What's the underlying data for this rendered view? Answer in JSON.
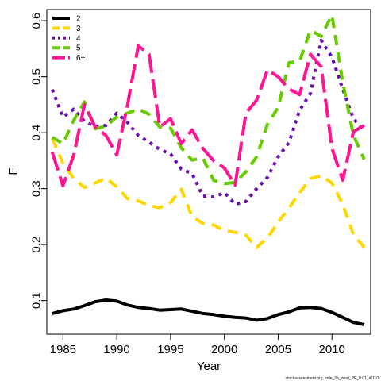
{
  "chart_data": {
    "type": "line",
    "xlabel": "Year",
    "ylabel": "F",
    "xlim": [
      1983.5,
      2013.6
    ],
    "ylim": [
      0.04,
      0.62
    ],
    "x_ticks": [
      1985,
      1990,
      1995,
      2000,
      2005,
      2010
    ],
    "y_ticks": [
      0.1,
      0.2,
      0.3,
      0.4,
      0.5,
      0.6
    ],
    "grid": false,
    "legend_position": "top-left",
    "footnote": "stockassessment.org, sole_3a_west_PE_0.01, r6110",
    "x": [
      1984,
      1985,
      1986,
      1987,
      1988,
      1989,
      1990,
      1991,
      1992,
      1993,
      1994,
      1995,
      1996,
      1997,
      1998,
      1999,
      2000,
      2001,
      2002,
      2003,
      2004,
      2005,
      2006,
      2007,
      2008,
      2009,
      2010,
      2011,
      2012,
      2013
    ],
    "series": [
      {
        "name": "2",
        "color": "#000000",
        "dash": "solid",
        "values": [
          0.077,
          0.082,
          0.085,
          0.091,
          0.098,
          0.101,
          0.099,
          0.092,
          0.088,
          0.086,
          0.083,
          0.084,
          0.085,
          0.081,
          0.077,
          0.075,
          0.072,
          0.07,
          0.069,
          0.065,
          0.068,
          0.075,
          0.08,
          0.087,
          0.088,
          0.086,
          0.079,
          0.07,
          0.061,
          0.057
        ]
      },
      {
        "name": "3",
        "color": "#ffd700",
        "dash": "dashed",
        "values": [
          0.39,
          0.345,
          0.318,
          0.302,
          0.31,
          0.319,
          0.303,
          0.282,
          0.278,
          0.27,
          0.266,
          0.275,
          0.299,
          0.25,
          0.238,
          0.235,
          0.225,
          0.222,
          0.217,
          0.195,
          0.212,
          0.24,
          0.265,
          0.293,
          0.318,
          0.323,
          0.31,
          0.272,
          0.218,
          0.195
        ]
      },
      {
        "name": "4",
        "color": "#6a0dad",
        "dash": "dotted",
        "values": [
          0.477,
          0.428,
          0.442,
          0.42,
          0.411,
          0.413,
          0.435,
          0.418,
          0.395,
          0.383,
          0.37,
          0.362,
          0.335,
          0.327,
          0.287,
          0.285,
          0.293,
          0.272,
          0.277,
          0.3,
          0.32,
          0.357,
          0.382,
          0.44,
          0.47,
          0.565,
          0.535,
          0.478,
          0.425,
          0.403
        ]
      },
      {
        "name": "5",
        "color": "#66cc00",
        "dash": "dashed",
        "values": [
          0.392,
          0.38,
          0.422,
          0.455,
          0.407,
          0.412,
          0.428,
          0.435,
          0.442,
          0.433,
          0.41,
          0.408,
          0.373,
          0.351,
          0.355,
          0.315,
          0.309,
          0.311,
          0.33,
          0.357,
          0.415,
          0.445,
          0.525,
          0.528,
          0.583,
          0.572,
          0.61,
          0.49,
          0.395,
          0.352
        ]
      },
      {
        "name": "6+",
        "color": "#ff1493",
        "dash": "longdash",
        "values": [
          0.365,
          0.305,
          0.36,
          0.45,
          0.41,
          0.395,
          0.36,
          0.45,
          0.555,
          0.54,
          0.41,
          0.425,
          0.38,
          0.405,
          0.372,
          0.35,
          0.337,
          0.306,
          0.435,
          0.458,
          0.512,
          0.5,
          0.478,
          0.468,
          0.54,
          0.518,
          0.372,
          0.315,
          0.402,
          0.413
        ]
      }
    ]
  }
}
